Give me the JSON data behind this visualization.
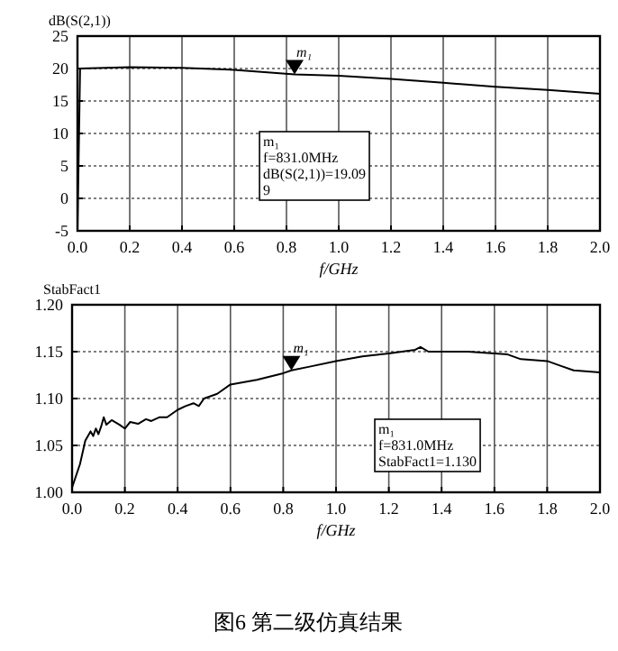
{
  "chart_data": [
    {
      "type": "line",
      "ylabel": "dB(S(2,1))",
      "xlabel": "f/GHz",
      "xlim": [
        0,
        2
      ],
      "ylim": [
        -5,
        25
      ],
      "xticks": [
        {
          "value": 0,
          "label": "0.0"
        },
        0.2,
        0.4,
        0.6,
        0.8,
        {
          "value": 1,
          "label": "1.0"
        },
        1.2,
        1.4,
        1.6,
        1.8,
        {
          "value": 2,
          "label": "2.0"
        }
      ],
      "yticks": [
        -5,
        0,
        5,
        10,
        15,
        20,
        25
      ],
      "grid": true,
      "series": [
        {
          "color": "#000000",
          "x": [
            0,
            0.01,
            0.2,
            0.4,
            0.6,
            0.831,
            1.0,
            1.2,
            1.4,
            1.6,
            1.8,
            2.0
          ],
          "values": [
            -5,
            20,
            20.2,
            20.1,
            19.8,
            19.09,
            18.9,
            18.4,
            17.8,
            17.2,
            16.7,
            16.1
          ]
        }
      ],
      "annotations": [
        {
          "text": "m₁",
          "x": 0.831,
          "y": 19.09
        },
        "m₁\nf=831.0MHz\ndB(S(2,1))=19.09\n9"
      ]
    },
    {
      "type": "line",
      "ylabel": "StabFact1",
      "xlabel": "f/GHz",
      "xlim": [
        0,
        2
      ],
      "ylim": [
        1.0,
        1.2
      ],
      "xticks": [
        {
          "value": 0,
          "label": "0.0"
        },
        0.2,
        0.4,
        0.6,
        0.8,
        {
          "value": 1,
          "label": "1.0"
        },
        1.2,
        1.4,
        1.6,
        1.8,
        {
          "value": 2,
          "label": "2.0"
        }
      ],
      "yticks": [
        {
          "value": 1.0,
          "label": "1.00"
        },
        1.05,
        {
          "value": 1.1,
          "label": "1.10"
        },
        1.15,
        {
          "value": 1.2,
          "label": "1.20"
        }
      ],
      "grid": true,
      "series": [
        {
          "color": "#000000",
          "x": [
            0,
            0.03,
            0.05,
            0.07,
            0.08,
            0.09,
            0.1,
            0.11,
            0.12,
            0.13,
            0.15,
            0.18,
            0.2,
            0.22,
            0.25,
            0.28,
            0.3,
            0.33,
            0.36,
            0.4,
            0.43,
            0.46,
            0.48,
            0.5,
            0.55,
            0.6,
            0.7,
            0.8,
            0.831,
            0.9,
            1.0,
            1.1,
            1.2,
            1.3,
            1.32,
            1.35,
            1.4,
            1.5,
            1.6,
            1.65,
            1.7,
            1.8,
            1.85,
            1.9,
            2.0
          ],
          "values": [
            1.005,
            1.03,
            1.055,
            1.065,
            1.06,
            1.068,
            1.062,
            1.07,
            1.08,
            1.072,
            1.077,
            1.072,
            1.068,
            1.075,
            1.073,
            1.078,
            1.076,
            1.08,
            1.08,
            1.088,
            1.092,
            1.095,
            1.092,
            1.1,
            1.105,
            1.115,
            1.12,
            1.127,
            1.13,
            1.134,
            1.14,
            1.145,
            1.148,
            1.152,
            1.155,
            1.15,
            1.15,
            1.15,
            1.148,
            1.147,
            1.142,
            1.14,
            1.135,
            1.13,
            1.128
          ]
        }
      ],
      "annotations": [
        {
          "text": "m₁",
          "x": 0.831,
          "y": 1.13
        },
        "m₁\nf=831.0MHz\nStabFact1=1.130",
        "图6  第二级仿真结果"
      ]
    }
  ]
}
